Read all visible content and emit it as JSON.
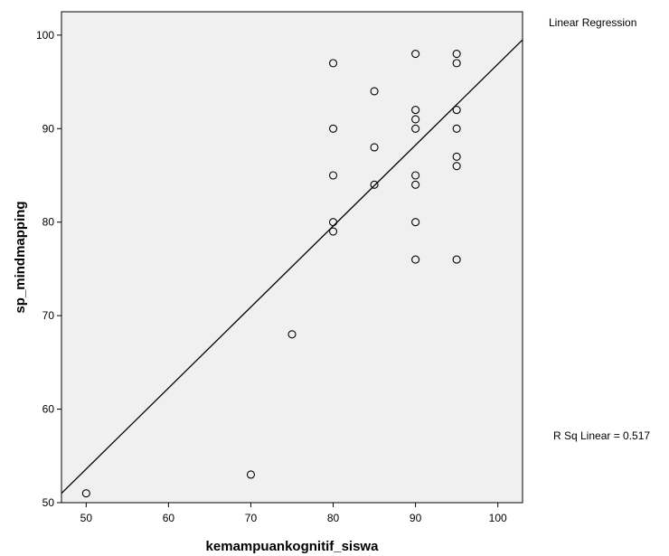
{
  "chart_data": {
    "type": "scatter",
    "title": "",
    "xlabel": "kemampuankognitif_siswa",
    "ylabel": "sp_mindmapping",
    "xlim": [
      47,
      103
    ],
    "ylim": [
      50,
      102.5
    ],
    "xticks": [
      50,
      60,
      70,
      80,
      90,
      100
    ],
    "yticks": [
      50,
      60,
      70,
      80,
      90,
      100
    ],
    "grid": false,
    "colors": {
      "plot_background": "#f0f0f0",
      "points": "#000000",
      "fit_line": "#000000"
    },
    "fit_line": {
      "label": "Linear Regression",
      "r_squared_text": "R Sq Linear = 0.517",
      "start": {
        "x": 47,
        "y": 51
      },
      "end": {
        "x": 103,
        "y": 99.5
      }
    },
    "points": [
      {
        "x": 50,
        "y": 51
      },
      {
        "x": 70,
        "y": 53
      },
      {
        "x": 75,
        "y": 68
      },
      {
        "x": 80,
        "y": 79
      },
      {
        "x": 80,
        "y": 80
      },
      {
        "x": 80,
        "y": 85
      },
      {
        "x": 80,
        "y": 90
      },
      {
        "x": 80,
        "y": 97
      },
      {
        "x": 85,
        "y": 84
      },
      {
        "x": 85,
        "y": 88
      },
      {
        "x": 85,
        "y": 94
      },
      {
        "x": 90,
        "y": 76
      },
      {
        "x": 90,
        "y": 80
      },
      {
        "x": 90,
        "y": 84
      },
      {
        "x": 90,
        "y": 85
      },
      {
        "x": 90,
        "y": 90
      },
      {
        "x": 90,
        "y": 91
      },
      {
        "x": 90,
        "y": 92
      },
      {
        "x": 90,
        "y": 98
      },
      {
        "x": 95,
        "y": 76
      },
      {
        "x": 95,
        "y": 86
      },
      {
        "x": 95,
        "y": 87
      },
      {
        "x": 95,
        "y": 90
      },
      {
        "x": 95,
        "y": 92
      },
      {
        "x": 95,
        "y": 97
      },
      {
        "x": 95,
        "y": 98
      }
    ]
  }
}
